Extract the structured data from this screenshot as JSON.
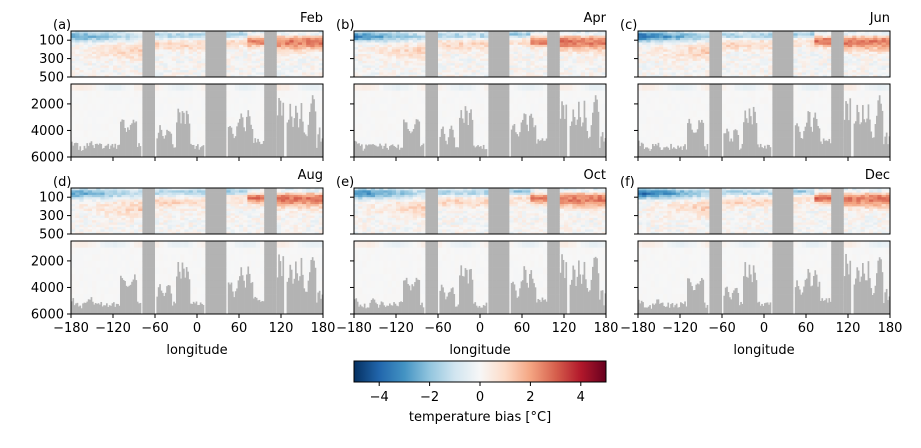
{
  "chart_data": {
    "type": "heatmap",
    "description_units": "temperature bias along a longitude section, depth in meters (axis inverted), split into upper (0-500 m) and deep (500-6000 m) panels",
    "panels": [
      {
        "label": "(a)",
        "month": "Feb"
      },
      {
        "label": "(b)",
        "month": "Apr"
      },
      {
        "label": "(c)",
        "month": "Jun"
      },
      {
        "label": "(d)",
        "month": "Aug"
      },
      {
        "label": "(e)",
        "month": "Oct"
      },
      {
        "label": "(f)",
        "month": "Dec"
      }
    ],
    "xlabel": "longitude",
    "xlim": [
      -180,
      180
    ],
    "xticks": [
      -180,
      -120,
      -60,
      0,
      60,
      120,
      180
    ],
    "upper_ylim": [
      0,
      500
    ],
    "upper_yticks": [
      100,
      300,
      500
    ],
    "lower_ylim": [
      500,
      6000
    ],
    "lower_yticks": [
      2000,
      4000,
      6000
    ],
    "land_longitude_bands": [
      [
        -80,
        -58
      ],
      [
        10,
        44
      ],
      [
        96,
        114
      ],
      [
        124,
        127
      ]
    ],
    "colorbar": {
      "label": "temperature bias [°C]",
      "range": [
        -5,
        5
      ],
      "ticks": [
        -4,
        -2,
        0,
        2,
        4
      ],
      "colormap": "RdBu_r",
      "colors": [
        "#053061",
        "#2166ac",
        "#4393c3",
        "#92c5de",
        "#d1e5f0",
        "#f7f7f7",
        "#fddbc7",
        "#f4a582",
        "#d6604d",
        "#b2182b",
        "#67001f"
      ]
    },
    "land_color": "#b3b3b3"
  }
}
